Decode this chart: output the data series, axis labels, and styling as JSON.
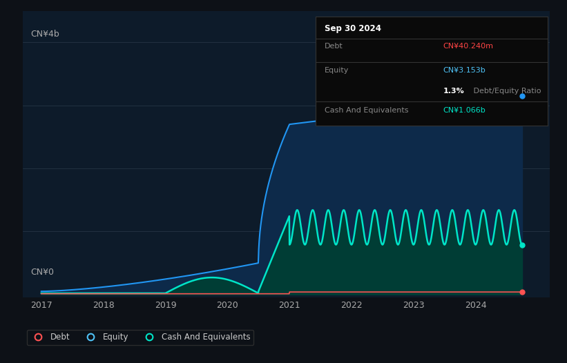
{
  "background_color": "#0d1117",
  "plot_bg_color": "#0d1b2a",
  "ylabel_top": "CN¥4b",
  "ylabel_bottom": "CN¥0",
  "x_ticks": [
    2017,
    2018,
    2019,
    2020,
    2021,
    2022,
    2023,
    2024
  ],
  "x_min": 2016.7,
  "x_max": 2025.2,
  "y_min": -0.05,
  "y_max": 4.5,
  "equity_color": "#2196f3",
  "equity_fill_color": "#0d2a4a",
  "cash_color": "#00e5c8",
  "cash_fill_color": "#003d35",
  "debt_color": "#ff5252",
  "box_bg": "#0a0a0a",
  "box_border": "#333333",
  "legend_items": [
    {
      "label": "Debt",
      "color": "#ff5252"
    },
    {
      "label": "Equity",
      "color": "#4fc3f7"
    },
    {
      "label": "Cash And Equivalents",
      "color": "#00e5c8"
    }
  ],
  "info_date": "Sep 30 2024",
  "info_debt_label": "Debt",
  "info_debt_value": "CN¥40.240m",
  "info_debt_color": "#ff4444",
  "info_equity_label": "Equity",
  "info_equity_value": "CN¥3.153b",
  "info_equity_color": "#4fc3f7",
  "info_ratio": "1.3%",
  "info_ratio_extra": " Debt/Equity Ratio",
  "info_cash_label": "Cash And Equivalents",
  "info_cash_value": "CN¥1.066b",
  "info_cash_color": "#00e5c8"
}
